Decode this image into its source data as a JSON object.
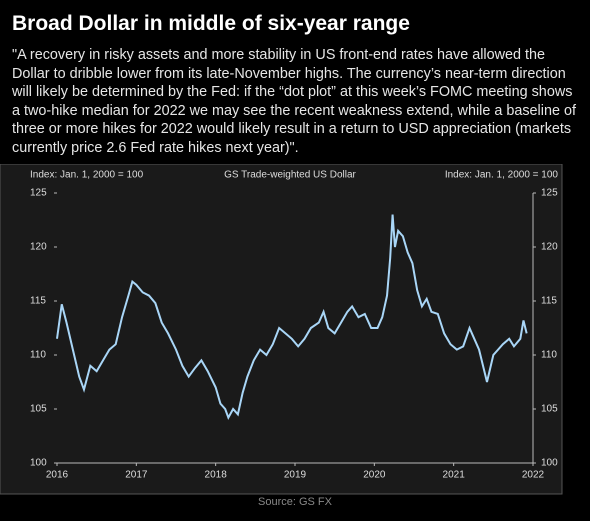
{
  "title": "Broad Dollar in middle of six-year range",
  "quote": "\"A recovery in risky assets and more stability in US front-end rates have allowed the Dollar to dribble lower from its late-November highs. The currency’s near-term direction will likely be determined by the Fed: if the “dot plot” at this week’s FOMC meeting shows a two-hike median for 2022 we may see the recent weakness extend, while a baseline of three or more hikes for 2022 would likely result in a return to USD appreciation (markets currently price 2.6 Fed rate hikes next year)\".",
  "source": "Source: GS FX",
  "chart_data": {
    "type": "line",
    "title": "GS Trade-weighted  US Dollar",
    "y_label": "Index: Jan. 1, 2000 = 100",
    "y2_label": "Index: Jan. 1, 2000 = 100",
    "xlim": [
      2016,
      2022
    ],
    "xticks": [
      2016,
      2017,
      2018,
      2019,
      2020,
      2021,
      2022
    ],
    "ylim": [
      100,
      125
    ],
    "yticks": [
      100,
      105,
      110,
      115,
      120,
      125
    ],
    "y2lim": [
      100,
      125
    ],
    "y2ticks": [
      100,
      105,
      110,
      115,
      120,
      125
    ],
    "series": [
      {
        "name": "GS Trade-weighted US Dollar",
        "color": "#a9d6f7",
        "x": [
          2016.0,
          2016.06,
          2016.12,
          2016.2,
          2016.28,
          2016.34,
          2016.42,
          2016.5,
          2016.58,
          2016.66,
          2016.74,
          2016.82,
          2016.9,
          2016.95,
          2017.0,
          2017.08,
          2017.16,
          2017.24,
          2017.32,
          2017.4,
          2017.5,
          2017.58,
          2017.66,
          2017.74,
          2017.82,
          2017.9,
          2018.0,
          2018.06,
          2018.12,
          2018.16,
          2018.22,
          2018.28,
          2018.34,
          2018.4,
          2018.48,
          2018.56,
          2018.64,
          2018.72,
          2018.8,
          2018.88,
          2018.96,
          2019.04,
          2019.12,
          2019.2,
          2019.3,
          2019.36,
          2019.42,
          2019.5,
          2019.58,
          2019.66,
          2019.72,
          2019.8,
          2019.88,
          2019.96,
          2020.04,
          2020.1,
          2020.16,
          2020.2,
          2020.23,
          2020.26,
          2020.3,
          2020.36,
          2020.42,
          2020.48,
          2020.54,
          2020.6,
          2020.66,
          2020.72,
          2020.8,
          2020.88,
          2020.96,
          2021.04,
          2021.12,
          2021.2,
          2021.26,
          2021.32,
          2021.42,
          2021.5,
          2021.56,
          2021.62,
          2021.7,
          2021.76,
          2021.84,
          2021.88,
          2021.92
        ],
        "values": [
          111.5,
          114.7,
          113,
          110.5,
          108,
          106.8,
          109,
          108.5,
          109.5,
          110.5,
          111,
          113.5,
          115.5,
          116.8,
          116.5,
          115.8,
          115.5,
          114.8,
          113,
          112,
          110.5,
          109,
          108,
          108.8,
          109.5,
          108.5,
          107,
          105.5,
          105,
          104.2,
          105,
          104.5,
          106.5,
          108,
          109.5,
          110.5,
          110,
          111,
          112.5,
          112,
          111.5,
          110.8,
          111.5,
          112.5,
          113,
          114,
          112.5,
          112,
          113,
          114,
          114.5,
          113.5,
          113.8,
          112.5,
          112.5,
          113.5,
          115.5,
          119,
          123,
          120,
          121.5,
          121,
          119.5,
          118.5,
          116,
          114.5,
          115.2,
          114,
          113.8,
          112,
          111,
          110.5,
          110.8,
          112.5,
          111.5,
          110.5,
          107.5,
          110,
          110.5,
          111,
          111.5,
          110.8,
          111.5,
          113.2,
          112
        ]
      }
    ]
  }
}
